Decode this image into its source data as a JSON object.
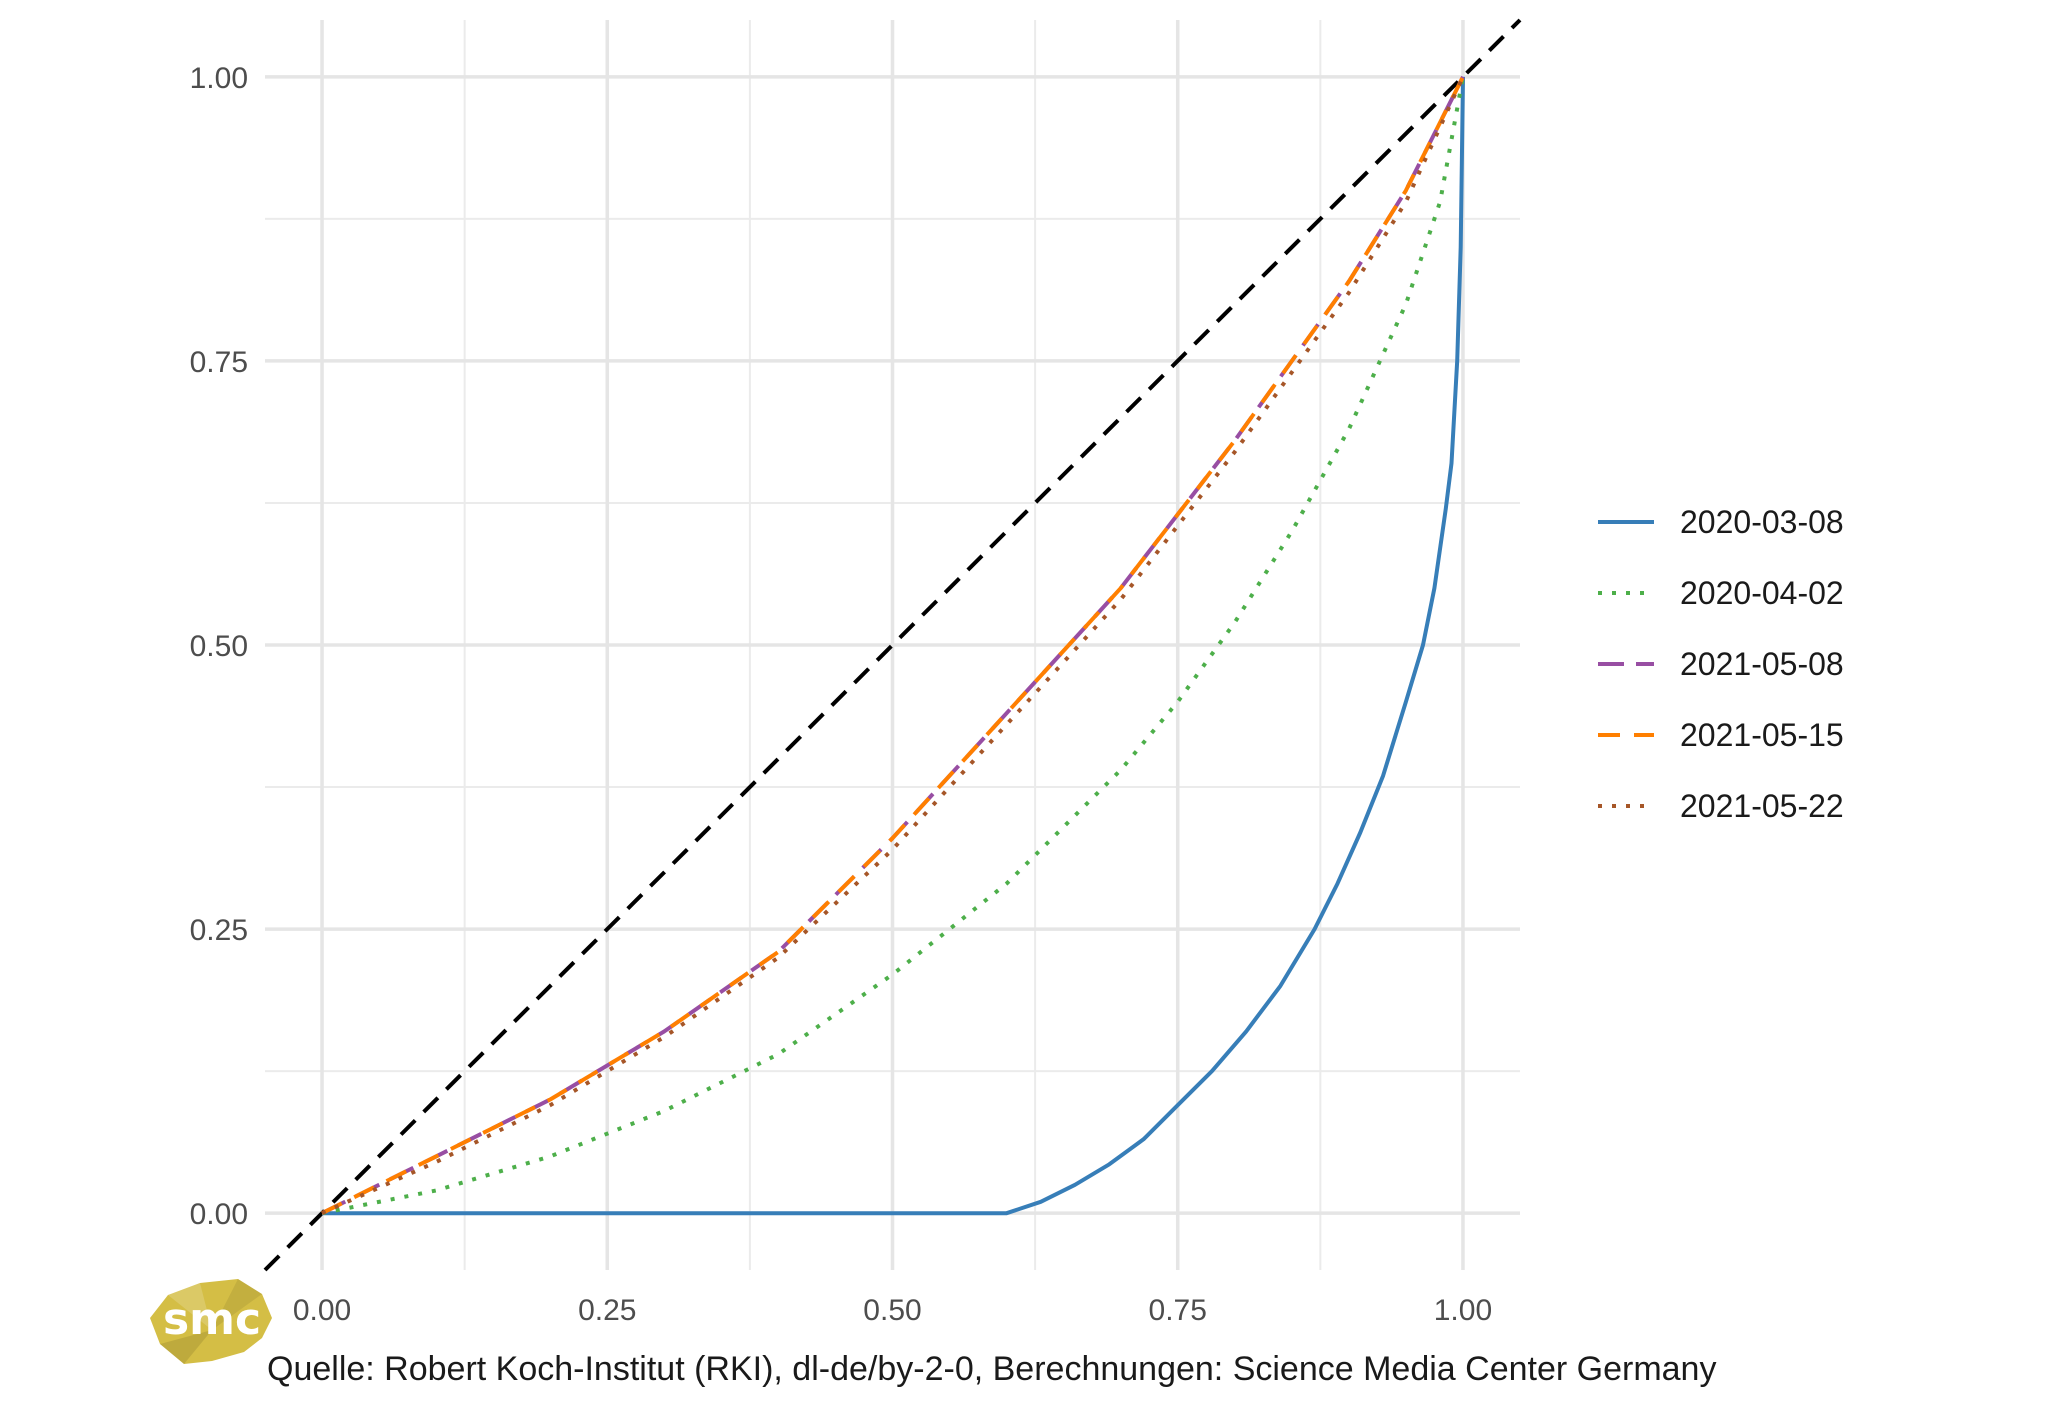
{
  "chart_data": {
    "type": "line",
    "title": "",
    "xlabel": "",
    "ylabel": "",
    "xlim": [
      -0.05,
      1.05
    ],
    "ylim": [
      -0.05,
      1.05
    ],
    "x_ticks": [
      "0.00",
      "0.25",
      "0.50",
      "0.75",
      "1.00"
    ],
    "y_ticks": [
      "0.00",
      "0.25",
      "0.50",
      "0.75",
      "1.00"
    ],
    "grid": true,
    "legend_position": "right",
    "reference_line": {
      "type": "diagonal",
      "style": "dashed",
      "color": "#000000"
    },
    "series": [
      {
        "name": "2020-03-08",
        "color": "#377EB8",
        "dash": "solid",
        "points": [
          [
            0,
            0
          ],
          [
            0.6,
            0
          ],
          [
            0.63,
            0.01
          ],
          [
            0.66,
            0.025
          ],
          [
            0.69,
            0.043
          ],
          [
            0.72,
            0.065
          ],
          [
            0.75,
            0.095
          ],
          [
            0.78,
            0.125
          ],
          [
            0.81,
            0.16
          ],
          [
            0.84,
            0.2
          ],
          [
            0.87,
            0.25
          ],
          [
            0.89,
            0.29
          ],
          [
            0.91,
            0.335
          ],
          [
            0.93,
            0.385
          ],
          [
            0.95,
            0.45
          ],
          [
            0.965,
            0.5
          ],
          [
            0.975,
            0.55
          ],
          [
            0.985,
            0.62
          ],
          [
            0.99,
            0.66
          ],
          [
            0.995,
            0.75
          ],
          [
            0.998,
            0.85
          ],
          [
            1.0,
            1.0
          ]
        ]
      },
      {
        "name": "2020-04-02",
        "color": "#4DAF4A",
        "dash": "dotted",
        "points": [
          [
            0,
            0
          ],
          [
            0.1,
            0.02
          ],
          [
            0.2,
            0.05
          ],
          [
            0.3,
            0.09
          ],
          [
            0.4,
            0.14
          ],
          [
            0.5,
            0.21
          ],
          [
            0.6,
            0.29
          ],
          [
            0.7,
            0.39
          ],
          [
            0.75,
            0.45
          ],
          [
            0.8,
            0.52
          ],
          [
            0.85,
            0.6
          ],
          [
            0.9,
            0.69
          ],
          [
            0.95,
            0.8
          ],
          [
            0.98,
            0.89
          ],
          [
            1.0,
            1.0
          ]
        ]
      },
      {
        "name": "2021-05-08",
        "color": "#984EA3",
        "dash": "longdash",
        "points": [
          [
            0,
            0
          ],
          [
            0.1,
            0.05
          ],
          [
            0.2,
            0.1
          ],
          [
            0.3,
            0.16
          ],
          [
            0.4,
            0.23
          ],
          [
            0.5,
            0.33
          ],
          [
            0.6,
            0.44
          ],
          [
            0.7,
            0.55
          ],
          [
            0.8,
            0.68
          ],
          [
            0.9,
            0.82
          ],
          [
            0.95,
            0.9
          ],
          [
            1.0,
            1.0
          ]
        ]
      },
      {
        "name": "2021-05-15",
        "color": "#FF7F00",
        "dash": "dashed",
        "points": [
          [
            0,
            0
          ],
          [
            0.1,
            0.05
          ],
          [
            0.2,
            0.1
          ],
          [
            0.3,
            0.16
          ],
          [
            0.4,
            0.23
          ],
          [
            0.5,
            0.33
          ],
          [
            0.6,
            0.44
          ],
          [
            0.7,
            0.55
          ],
          [
            0.8,
            0.68
          ],
          [
            0.9,
            0.82
          ],
          [
            0.95,
            0.9
          ],
          [
            1.0,
            1.0
          ]
        ]
      },
      {
        "name": "2021-05-22",
        "color": "#A65628",
        "dash": "dotted",
        "points": [
          [
            0,
            0
          ],
          [
            0.1,
            0.045
          ],
          [
            0.2,
            0.095
          ],
          [
            0.3,
            0.155
          ],
          [
            0.4,
            0.225
          ],
          [
            0.5,
            0.32
          ],
          [
            0.6,
            0.43
          ],
          [
            0.7,
            0.54
          ],
          [
            0.8,
            0.67
          ],
          [
            0.9,
            0.81
          ],
          [
            0.95,
            0.89
          ],
          [
            1.0,
            1.0
          ]
        ]
      }
    ]
  },
  "caption": "Quelle: Robert Koch-Institut (RKI), dl-de/by-2-0, Berechnungen: Science Media Center Germany",
  "logo": {
    "text": "smc",
    "color": "#D4BE45"
  }
}
